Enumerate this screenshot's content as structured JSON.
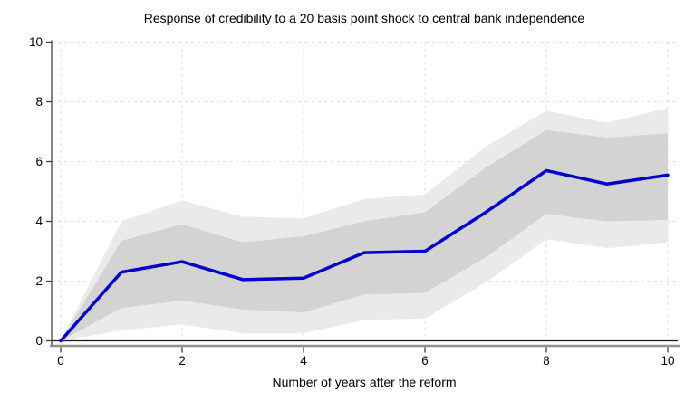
{
  "title": "Response of credibility to a 20 basis point shock to central bank independence",
  "colors": {
    "background": "#ffffff",
    "line": "#0000cc",
    "band_inner": "#d3d3d3",
    "band_outer": "#eaeaea",
    "grid": "#dedede",
    "y_axis_line": "#404040",
    "x_axis_line": "#8f8f8f",
    "zero_line": "#1a1a1a",
    "tick": "#404040",
    "text": "#000000"
  },
  "chart_data": {
    "type": "line",
    "title": "Response of credibility to a 20 basis point shock to central bank independence",
    "xlabel": "Number of years after the reform",
    "ylabel": "",
    "xlim": [
      0,
      10
    ],
    "ylim": [
      0,
      10
    ],
    "xticks": [
      0,
      2,
      4,
      6,
      8,
      10
    ],
    "yticks": [
      0,
      2,
      4,
      6,
      8,
      10
    ],
    "grid": "dashed",
    "legend": "none",
    "x": [
      0,
      1,
      2,
      3,
      4,
      5,
      6,
      7,
      8,
      9,
      10
    ],
    "series": [
      {
        "name": "response",
        "style": "thick-blue-line",
        "values": [
          0,
          2.3,
          2.65,
          2.05,
          2.1,
          2.95,
          3.0,
          4.3,
          5.7,
          5.25,
          5.55
        ]
      },
      {
        "name": "inner_band_upper",
        "style": "inner-gray-band-edge",
        "values": [
          0,
          3.35,
          3.9,
          3.3,
          3.5,
          4.0,
          4.3,
          5.8,
          7.05,
          6.8,
          6.95
        ]
      },
      {
        "name": "inner_band_lower",
        "style": "inner-gray-band-edge",
        "values": [
          0,
          1.1,
          1.35,
          1.05,
          0.95,
          1.55,
          1.6,
          2.8,
          4.25,
          4.0,
          4.05
        ]
      },
      {
        "name": "outer_band_upper",
        "style": "outer-gray-band-edge",
        "values": [
          0,
          4.0,
          4.7,
          4.15,
          4.1,
          4.75,
          4.9,
          6.5,
          7.7,
          7.3,
          7.8
        ]
      },
      {
        "name": "outer_band_lower",
        "style": "outer-gray-band-edge",
        "values": [
          0,
          0.35,
          0.55,
          0.25,
          0.25,
          0.7,
          0.75,
          1.95,
          3.4,
          3.1,
          3.3
        ]
      }
    ],
    "zero_reference_line": 0
  }
}
